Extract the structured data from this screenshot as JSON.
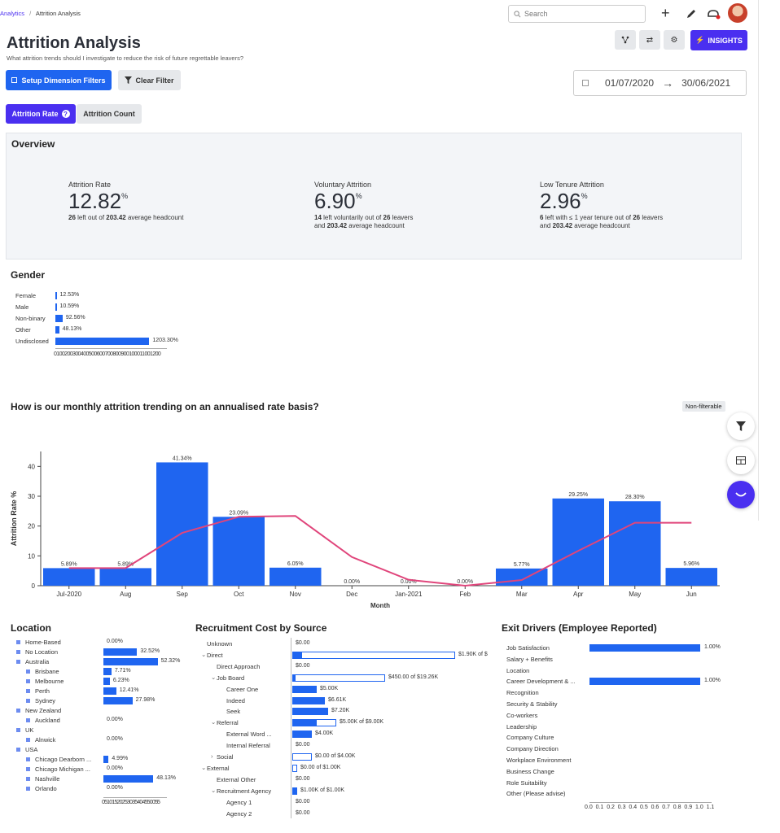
{
  "breadcrumb": {
    "root": "Analytics",
    "sep": "/",
    "current": "Attrition Analysis"
  },
  "search": {
    "placeholder": "Search"
  },
  "header": {
    "title": "Attrition Analysis",
    "subtitle": "What attrition trends should I investigate to reduce the risk of future regrettable leavers?",
    "insights_label": "INSIGHTS"
  },
  "filters": {
    "setup_label": "Setup Dimension Filters",
    "clear_label": "Clear Filter"
  },
  "date_range": {
    "start": "01/07/2020",
    "arrow": "→",
    "end": "30/06/2021"
  },
  "tabs": {
    "rate_label": "Attrition Rate",
    "count_label": "Attrition Count"
  },
  "overview": {
    "title": "Overview",
    "kpis": [
      {
        "label": "Attrition Rate",
        "value": "12.82",
        "unit": "%",
        "desc1_bold": "26",
        "desc1": " left out of ",
        "desc1_bold2": "203.42",
        "desc1_end": " average headcount",
        "desc2": ""
      },
      {
        "label": "Voluntary Attrition",
        "value": "6.90",
        "unit": "%",
        "desc1_bold": "14",
        "desc1": " left voluntarily out of ",
        "desc1_bold2": "26",
        "desc1_end": " leavers",
        "desc2_pre": "and ",
        "desc2_bold": "203.42",
        "desc2": " average headcount"
      },
      {
        "label": "Low Tenure Attrition",
        "value": "2.96",
        "unit": "%",
        "desc1_bold": "6",
        "desc1": " left with ≤ 1 year tenure out of ",
        "desc1_bold2": "26",
        "desc1_end": " leavers",
        "desc2_pre": "and ",
        "desc2_bold": "203.42",
        "desc2": " average headcount"
      }
    ]
  },
  "gender": {
    "title": "Gender",
    "rows": [
      {
        "label": "Female",
        "value": 12.53,
        "text": "12.53%"
      },
      {
        "label": "Male",
        "value": 10.59,
        "text": "10.59%"
      },
      {
        "label": "Non-binary",
        "value": 92.56,
        "text": "92.56%"
      },
      {
        "label": "Other",
        "value": 48.13,
        "text": "48.13%"
      },
      {
        "label": "Undisclosed",
        "value": 1203.3,
        "text": "1203.30%"
      }
    ],
    "axis_text": "0100200300400500600700800900100011001200"
  },
  "trend": {
    "title": "How is our monthly attrition trending on an annualised rate basis?",
    "badge": "Non-filterable"
  },
  "chart_data": {
    "type": "bar",
    "xlabel": "Month",
    "ylabel": "Attrition Rate %",
    "ylim": [
      0,
      45
    ],
    "yticks": [
      "0",
      "10",
      "20",
      "30",
      "40"
    ],
    "categories": [
      "Jul-2020",
      "Aug",
      "Sep",
      "Oct",
      "Nov",
      "Dec",
      "Jan-2021",
      "Feb",
      "Mar",
      "Apr",
      "May",
      "Jun"
    ],
    "values": [
      5.89,
      5.89,
      41.34,
      23.09,
      6.05,
      0.0,
      0.0,
      0.0,
      5.77,
      29.25,
      28.3,
      5.96
    ],
    "labels": [
      "5.89%",
      "5.89%",
      "41.34%",
      "23.09%",
      "6.05%",
      "0.00%",
      "0.00%",
      "0.00%",
      "5.77%",
      "29.25%",
      "28.30%",
      "5.96%"
    ],
    "trend_line": [
      5.89,
      5.89,
      17.7,
      23.1,
      23.4,
      9.6,
      2.0,
      0.0,
      1.9,
      11.7,
      21.1,
      21.1
    ],
    "bar_color": "#1f65f0",
    "line_color": "#e0457b"
  },
  "location": {
    "title": "Location",
    "rows": [
      {
        "label": "Home-Based",
        "indent": 0,
        "value": 0.0,
        "text": "0.00%"
      },
      {
        "label": "No Location",
        "indent": 0,
        "value": 32.52,
        "text": "32.52%"
      },
      {
        "label": "Australia",
        "indent": 0,
        "value": 52.32,
        "text": "52.32%"
      },
      {
        "label": "Brisbane",
        "indent": 1,
        "value": 7.71,
        "text": "7.71%"
      },
      {
        "label": "Melbourne",
        "indent": 1,
        "value": 6.23,
        "text": "6.23%"
      },
      {
        "label": "Perth",
        "indent": 1,
        "value": 12.41,
        "text": "12.41%"
      },
      {
        "label": "Sydney",
        "indent": 1,
        "value": 27.98,
        "text": "27.98%"
      },
      {
        "label": "New Zealand",
        "indent": 0,
        "value": null,
        "text": ""
      },
      {
        "label": "Auckland",
        "indent": 1,
        "value": 0.0,
        "text": "0.00%"
      },
      {
        "label": "UK",
        "indent": 0,
        "value": null,
        "text": ""
      },
      {
        "label": "Alnwick",
        "indent": 1,
        "value": 0.0,
        "text": "0.00%"
      },
      {
        "label": "USA",
        "indent": 0,
        "value": null,
        "text": ""
      },
      {
        "label": "Chicago Dearborn ...",
        "indent": 1,
        "value": 4.99,
        "text": "4.99%"
      },
      {
        "label": "Chicago Michigan ...",
        "indent": 1,
        "value": 0.0,
        "text": "0.00%"
      },
      {
        "label": "Nashville",
        "indent": 1,
        "value": 48.13,
        "text": "48.13%"
      },
      {
        "label": "Orlando",
        "indent": 1,
        "value": 0.0,
        "text": "0.00%"
      }
    ],
    "axis_text": "05101520253035404550055"
  },
  "recruitment": {
    "title": "Recruitment Cost by Source",
    "rows": [
      {
        "label": "Unknown",
        "indent": 0,
        "caret": "",
        "fill": 0,
        "total": 0,
        "text": "$0.00"
      },
      {
        "label": "Direct",
        "indent": 0,
        "caret": "⌄",
        "fill": 0.06,
        "total": 1,
        "text": "$1.90K of $"
      },
      {
        "label": "Direct Approach",
        "indent": 1,
        "caret": "",
        "fill": 0,
        "total": 0,
        "text": "$0.00"
      },
      {
        "label": "Job Board",
        "indent": 1,
        "caret": "⌄",
        "fill": 0.02,
        "total": 0.57,
        "text": "$450.00 of $19.26K"
      },
      {
        "label": "Career One",
        "indent": 2,
        "caret": "",
        "fill": 0.15,
        "total": 0,
        "text": "$5.00K"
      },
      {
        "label": "Indeed",
        "indent": 2,
        "caret": "",
        "fill": 0.2,
        "total": 0,
        "text": "$6.61K"
      },
      {
        "label": "Seek",
        "indent": 2,
        "caret": "",
        "fill": 0.22,
        "total": 0,
        "text": "$7.20K"
      },
      {
        "label": "Referral",
        "indent": 1,
        "caret": "⌄",
        "fill": 0.15,
        "total": 0.27,
        "text": "$5.00K of $9.00K"
      },
      {
        "label": "External Word ...",
        "indent": 2,
        "caret": "",
        "fill": 0.12,
        "total": 0,
        "text": "$4.00K"
      },
      {
        "label": "Internal Referral",
        "indent": 2,
        "caret": "",
        "fill": 0,
        "total": 0,
        "text": "$0.00"
      },
      {
        "label": "Social",
        "indent": 1,
        "caret": "›",
        "fill": 0,
        "total": 0.12,
        "text": "$0.00 of $4.00K"
      },
      {
        "label": "External",
        "indent": 0,
        "caret": "⌄",
        "fill": 0,
        "total": 0.03,
        "text": "$0.00 of $1.00K"
      },
      {
        "label": "External Other",
        "indent": 1,
        "caret": "",
        "fill": 0,
        "total": 0,
        "text": "$0.00"
      },
      {
        "label": "Recruitment Agency",
        "indent": 1,
        "caret": "⌄",
        "fill": 0.03,
        "total": 0.03,
        "text": "$1.00K of $1.00K"
      },
      {
        "label": "Agency 1",
        "indent": 2,
        "caret": "",
        "fill": 0,
        "total": 0,
        "text": "$0.00"
      },
      {
        "label": "Agency 2",
        "indent": 2,
        "caret": "",
        "fill": 0,
        "total": 0,
        "text": "$0.00"
      }
    ]
  },
  "exit": {
    "title": "Exit Drivers (Employee Reported)",
    "rows": [
      {
        "label": "Job Satisfaction",
        "value": 1.0,
        "text": "1.00%"
      },
      {
        "label": "Salary + Benefits",
        "value": null,
        "text": ""
      },
      {
        "label": "Location",
        "value": null,
        "text": ""
      },
      {
        "label": "Career Development & ...",
        "value": 1.0,
        "text": "1.00%"
      },
      {
        "label": "Recognition",
        "value": null,
        "text": ""
      },
      {
        "label": "Security & Stability",
        "value": null,
        "text": ""
      },
      {
        "label": "Co-workers",
        "value": null,
        "text": ""
      },
      {
        "label": "Leadership",
        "value": null,
        "text": ""
      },
      {
        "label": "Company Culture",
        "value": null,
        "text": ""
      },
      {
        "label": "Company Direction",
        "value": null,
        "text": ""
      },
      {
        "label": "Workplace Environment",
        "value": null,
        "text": ""
      },
      {
        "label": "Business Change",
        "value": null,
        "text": ""
      },
      {
        "label": "Role Suitability",
        "value": null,
        "text": ""
      },
      {
        "label": "Other (Please advise)",
        "value": null,
        "text": ""
      }
    ],
    "axis_ticks": [
      "0.0",
      "0.1",
      "0.2",
      "0.3",
      "0.4",
      "0.5",
      "0.6",
      "0.7",
      "0.8",
      "0.9",
      "1.0",
      "1.1"
    ]
  },
  "colors": {
    "primary": "#4a2ff0",
    "bar": "#1f65f0",
    "line": "#e0457b"
  }
}
